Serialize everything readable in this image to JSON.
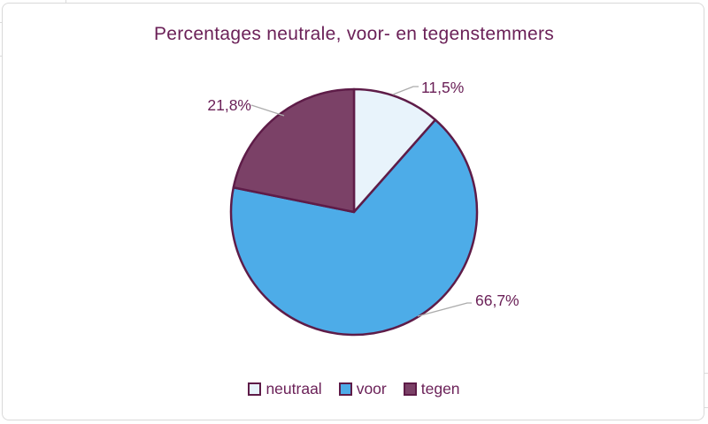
{
  "chart_data": {
    "type": "pie",
    "title": "Percentages neutrale, voor- en tegenstemmers",
    "slices": [
      {
        "label": "neutraal",
        "value": 11.5,
        "display_label": "11,5%",
        "color": "#E8F3FB"
      },
      {
        "label": "voor",
        "value": 66.7,
        "display_label": "66,7%",
        "color": "#4DACE8"
      },
      {
        "label": "tegen",
        "value": 21.8,
        "display_label": "21,8%",
        "color": "#7B4167"
      }
    ],
    "start_angle_deg": 0,
    "direction": "clockwise",
    "stroke_color": "#5E1C48",
    "text_color": "#6B2158",
    "leader_line_color": "#ACACAC",
    "legend_position": "bottom"
  }
}
